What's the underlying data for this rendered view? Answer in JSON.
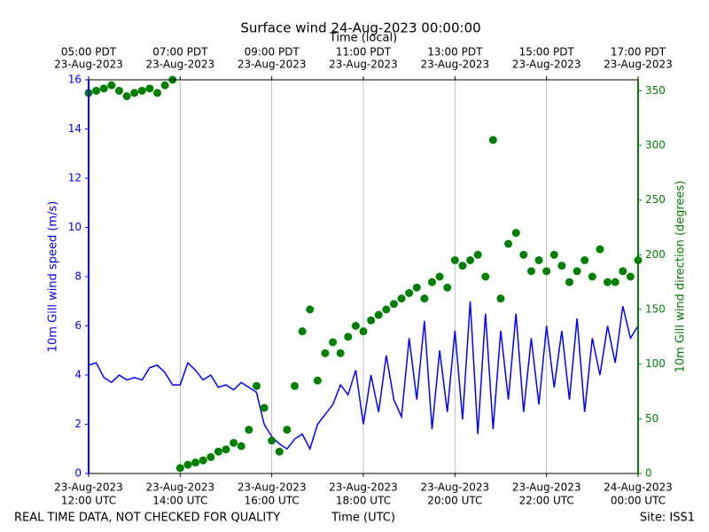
{
  "chart_data": {
    "type": "line",
    "title": "Surface wind 24-Aug-2023 00:00:00",
    "top_axis_label": "Time (local)",
    "xlabel": "Time (UTC)",
    "ylabel": "10m Gill wind speed (m/s)",
    "y2label": "10m Gill wind direction (degrees)",
    "footer_left": "REAL TIME DATA, NOT CHECKED FOR QUALITY",
    "footer_right": "Site: ISS1",
    "grid": true,
    "xlim": [
      "2023-08-23T12:00",
      "2023-08-24T00:00"
    ],
    "xticks": [
      {
        "value": "2023-08-23T12:00",
        "label": [
          "23-Aug-2023",
          "12:00 UTC"
        ]
      },
      {
        "value": "2023-08-23T14:00",
        "label": [
          "23-Aug-2023",
          "14:00 UTC"
        ]
      },
      {
        "value": "2023-08-23T16:00",
        "label": [
          "23-Aug-2023",
          "16:00 UTC"
        ]
      },
      {
        "value": "2023-08-23T18:00",
        "label": [
          "23-Aug-2023",
          "18:00 UTC"
        ]
      },
      {
        "value": "2023-08-23T20:00",
        "label": [
          "23-Aug-2023",
          "20:00 UTC"
        ]
      },
      {
        "value": "2023-08-23T22:00",
        "label": [
          "23-Aug-2023",
          "22:00 UTC"
        ]
      },
      {
        "value": "2023-08-24T00:00",
        "label": [
          "24-Aug-2023",
          "00:00 UTC"
        ]
      }
    ],
    "top_xticks": [
      {
        "value": "2023-08-23T12:00",
        "label": [
          "05:00 PDT",
          "23-Aug-2023"
        ]
      },
      {
        "value": "2023-08-23T14:00",
        "label": [
          "07:00 PDT",
          "23-Aug-2023"
        ]
      },
      {
        "value": "2023-08-23T16:00",
        "label": [
          "09:00 PDT",
          "23-Aug-2023"
        ]
      },
      {
        "value": "2023-08-23T18:00",
        "label": [
          "11:00 PDT",
          "23-Aug-2023"
        ]
      },
      {
        "value": "2023-08-23T20:00",
        "label": [
          "13:00 PDT",
          "23-Aug-2023"
        ]
      },
      {
        "value": "2023-08-23T22:00",
        "label": [
          "15:00 PDT",
          "23-Aug-2023"
        ]
      },
      {
        "value": "2023-08-24T00:00",
        "label": [
          "17:00 PDT",
          "23-Aug-2023"
        ]
      }
    ],
    "ylim": [
      0,
      16
    ],
    "yticks": [
      0,
      2,
      4,
      6,
      8,
      10,
      12,
      14,
      16
    ],
    "y2lim": [
      0,
      360
    ],
    "y2ticks": [
      0,
      50,
      100,
      150,
      200,
      250,
      300,
      350
    ],
    "x": [
      "2023-08-23T12:00",
      "2023-08-23T12:10",
      "2023-08-23T12:20",
      "2023-08-23T12:30",
      "2023-08-23T12:40",
      "2023-08-23T12:50",
      "2023-08-23T13:00",
      "2023-08-23T13:10",
      "2023-08-23T13:20",
      "2023-08-23T13:30",
      "2023-08-23T13:40",
      "2023-08-23T13:50",
      "2023-08-23T14:00",
      "2023-08-23T14:10",
      "2023-08-23T14:20",
      "2023-08-23T14:30",
      "2023-08-23T14:40",
      "2023-08-23T14:50",
      "2023-08-23T15:00",
      "2023-08-23T15:10",
      "2023-08-23T15:20",
      "2023-08-23T15:30",
      "2023-08-23T15:40",
      "2023-08-23T15:50",
      "2023-08-23T16:00",
      "2023-08-23T16:10",
      "2023-08-23T16:20",
      "2023-08-23T16:30",
      "2023-08-23T16:40",
      "2023-08-23T16:50",
      "2023-08-23T17:00",
      "2023-08-23T17:10",
      "2023-08-23T17:20",
      "2023-08-23T17:30",
      "2023-08-23T17:40",
      "2023-08-23T17:50",
      "2023-08-23T18:00",
      "2023-08-23T18:10",
      "2023-08-23T18:20",
      "2023-08-23T18:30",
      "2023-08-23T18:40",
      "2023-08-23T18:50",
      "2023-08-23T19:00",
      "2023-08-23T19:10",
      "2023-08-23T19:20",
      "2023-08-23T19:30",
      "2023-08-23T19:40",
      "2023-08-23T19:50",
      "2023-08-23T20:00",
      "2023-08-23T20:10",
      "2023-08-23T20:20",
      "2023-08-23T20:30",
      "2023-08-23T20:40",
      "2023-08-23T20:50",
      "2023-08-23T21:00",
      "2023-08-23T21:10",
      "2023-08-23T21:20",
      "2023-08-23T21:30",
      "2023-08-23T21:40",
      "2023-08-23T21:50",
      "2023-08-23T22:00",
      "2023-08-23T22:10",
      "2023-08-23T22:20",
      "2023-08-23T22:30",
      "2023-08-23T22:40",
      "2023-08-23T22:50",
      "2023-08-23T23:00",
      "2023-08-23T23:10",
      "2023-08-23T23:20",
      "2023-08-23T23:30",
      "2023-08-23T23:40",
      "2023-08-23T23:50",
      "2023-08-24T00:00"
    ],
    "series": [
      {
        "name": "10m Gill wind speed",
        "color": "#0000ff",
        "mark": "line",
        "values": [
          4.4,
          4.5,
          3.9,
          3.7,
          4.0,
          3.8,
          3.9,
          3.8,
          4.3,
          4.4,
          4.1,
          3.6,
          3.6,
          4.5,
          4.2,
          3.8,
          4.0,
          3.5,
          3.6,
          3.4,
          3.7,
          3.5,
          3.3,
          2.0,
          1.5,
          1.2,
          1.0,
          1.4,
          1.6,
          1.0,
          2.0,
          2.4,
          2.8,
          3.6,
          3.2,
          4.2,
          2.0,
          4.0,
          2.5,
          4.8,
          3.0,
          2.3,
          5.5,
          3.0,
          6.2,
          1.8,
          5.0,
          2.5,
          5.8,
          2.2,
          7.0,
          1.6,
          6.5,
          1.8,
          5.8,
          3.0,
          6.5,
          2.5,
          5.5,
          2.8,
          6.0,
          3.5,
          5.8,
          3.0,
          6.3,
          2.5,
          5.5,
          4.0,
          6.0,
          4.5,
          6.8,
          5.5,
          6.0
        ]
      },
      {
        "name": "10m Gill wind direction",
        "color": "#008000",
        "mark": "scatter",
        "axis": "y2",
        "values": [
          348,
          350,
          352,
          355,
          350,
          345,
          348,
          350,
          352,
          348,
          355,
          360,
          5,
          8,
          10,
          12,
          15,
          20,
          22,
          28,
          25,
          40,
          80,
          60,
          30,
          20,
          40,
          80,
          130,
          150,
          85,
          110,
          120,
          110,
          125,
          135,
          130,
          140,
          145,
          150,
          155,
          160,
          165,
          170,
          160,
          175,
          180,
          170,
          195,
          190,
          195,
          200,
          180,
          305,
          160,
          210,
          220,
          200,
          185,
          195,
          185,
          200,
          190,
          175,
          185,
          195,
          180,
          205,
          175,
          175,
          185,
          180,
          195
        ]
      }
    ]
  }
}
